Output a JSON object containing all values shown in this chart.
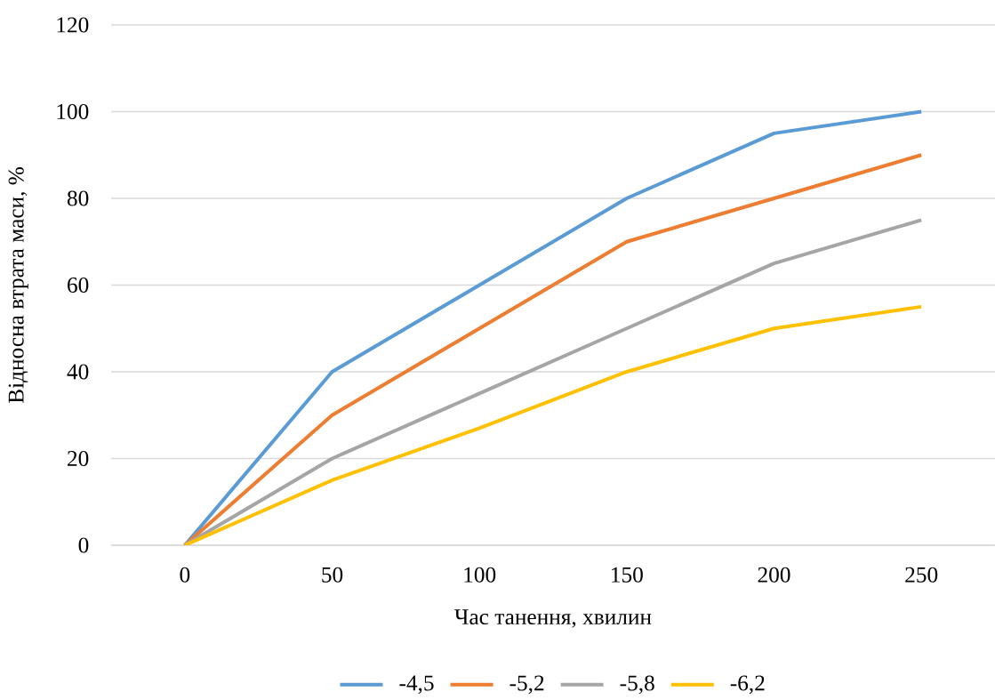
{
  "chart_data": {
    "type": "line",
    "xlabel": "Час танення, хвилин",
    "ylabel": "Відносна втрата маси, %",
    "categories": [
      "0",
      "50",
      "100",
      "150",
      "200",
      "250"
    ],
    "series": [
      {
        "name": "-4,5",
        "color": "#5b9bd5",
        "values": [
          0,
          40,
          60,
          80,
          95,
          100
        ]
      },
      {
        "name": "-5,2",
        "color": "#ed7d31",
        "values": [
          0,
          30,
          50,
          70,
          80,
          90
        ]
      },
      {
        "name": "-5,8",
        "color": "#a5a5a5",
        "values": [
          0,
          20,
          35,
          50,
          65,
          75
        ]
      },
      {
        "name": "-6,2",
        "color": "#ffc000",
        "values": [
          0,
          15,
          27,
          40,
          50,
          55
        ]
      }
    ],
    "ylim": [
      0,
      120
    ],
    "yticks": [
      0,
      20,
      40,
      60,
      80,
      100,
      120
    ],
    "grid": "y",
    "legend": "bottom",
    "marker": "none",
    "line_style": "solid"
  }
}
